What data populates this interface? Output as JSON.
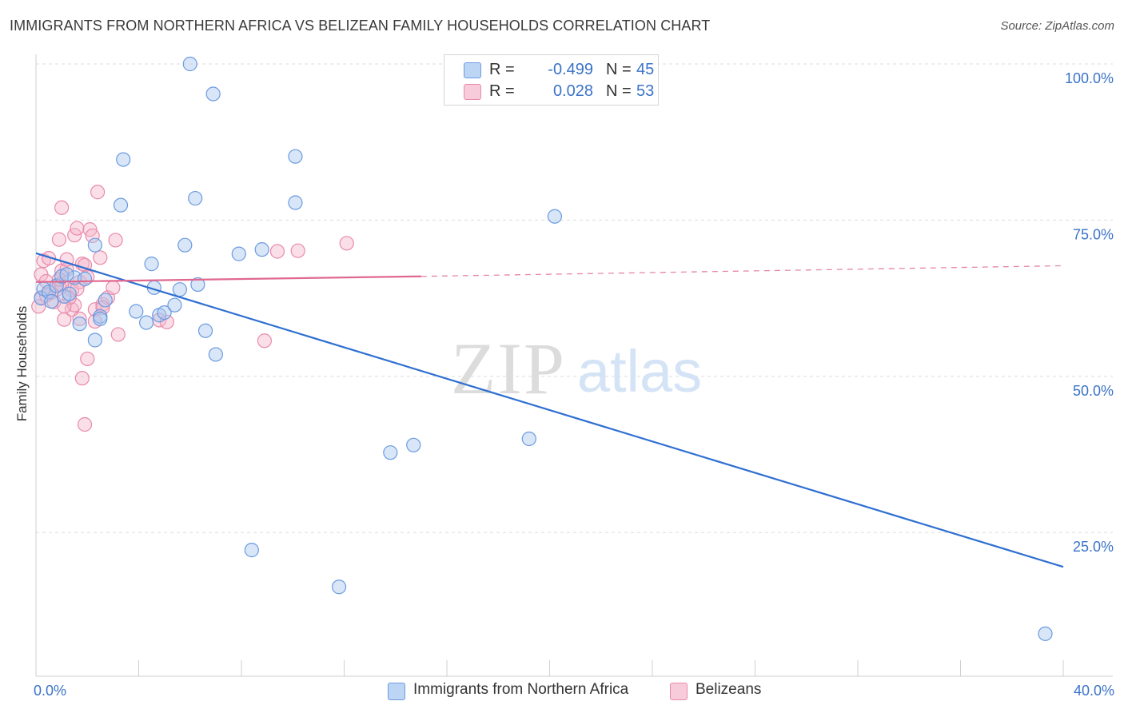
{
  "header": {
    "title": "IMMIGRANTS FROM NORTHERN AFRICA VS BELIZEAN FAMILY HOUSEHOLDS CORRELATION CHART",
    "source": "Source: ZipAtlas.com"
  },
  "legend": {
    "rows": [
      {
        "r_label": "R =",
        "r_value": "-0.499",
        "n_label": "N =",
        "n_value": "45"
      },
      {
        "r_label": "R =",
        "r_value": "0.028",
        "n_label": "N =",
        "n_value": "53"
      }
    ]
  },
  "watermark": {
    "zip": "ZIP",
    "atlas": "atlas"
  },
  "colors": {
    "blue_fill": "#a9c8f0",
    "blue_stroke": "#6b9be0",
    "blue_line": "#2e6fd1",
    "pink_fill": "#f5b8cc",
    "pink_stroke": "#e98aab",
    "pink_line": "#e0688f",
    "grid": "#dddddd",
    "axis_text": "#3a73c9"
  },
  "chart_data": {
    "type": "scatter",
    "title": "IMMIGRANTS FROM NORTHERN AFRICA VS BELIZEAN FAMILY HOUSEHOLDS CORRELATION CHART",
    "xlabel": "",
    "ylabel": "Family Households",
    "xlim": [
      0,
      40
    ],
    "ylim": [
      2,
      100
    ],
    "x_tick_labels": [
      "0.0%",
      "40.0%"
    ],
    "y_ticks": [
      25,
      50,
      75,
      100
    ],
    "y_tick_labels": [
      "25.0%",
      "50.0%",
      "75.0%",
      "100.0%"
    ],
    "grid": true,
    "series": [
      {
        "name": "Immigrants from Northern Africa",
        "color": "blue",
        "points": [
          [
            0.2,
            62.5
          ],
          [
            0.3,
            64.0
          ],
          [
            0.5,
            63.5
          ],
          [
            0.8,
            64.5
          ],
          [
            1.0,
            66.0
          ],
          [
            1.1,
            62.8
          ],
          [
            1.3,
            63.2
          ],
          [
            1.5,
            65.8
          ],
          [
            1.7,
            58.4
          ],
          [
            1.9,
            65.6
          ],
          [
            2.3,
            55.8
          ],
          [
            2.5,
            59.6
          ],
          [
            2.5,
            59.2
          ],
          [
            2.7,
            62.2
          ],
          [
            3.3,
            77.4
          ],
          [
            3.4,
            84.7
          ],
          [
            3.9,
            60.4
          ],
          [
            4.3,
            58.6
          ],
          [
            4.5,
            68.0
          ],
          [
            4.6,
            64.2
          ],
          [
            4.8,
            59.8
          ],
          [
            5.0,
            60.2
          ],
          [
            5.4,
            61.4
          ],
          [
            5.6,
            63.9
          ],
          [
            5.8,
            71.0
          ],
          [
            6.2,
            78.5
          ],
          [
            6.3,
            64.7
          ],
          [
            6.6,
            57.3
          ],
          [
            7.0,
            53.5
          ],
          [
            7.9,
            69.6
          ],
          [
            8.8,
            70.3
          ],
          [
            10.1,
            77.8
          ],
          [
            10.1,
            85.2
          ],
          [
            13.8,
            37.8
          ],
          [
            14.7,
            39.0
          ],
          [
            19.2,
            40.0
          ],
          [
            6.0,
            100.0
          ],
          [
            6.9,
            95.2
          ],
          [
            20.2,
            75.6
          ],
          [
            8.4,
            22.2
          ],
          [
            11.8,
            16.3
          ],
          [
            39.3,
            8.8
          ],
          [
            2.3,
            71.0
          ],
          [
            1.2,
            66.3
          ],
          [
            0.6,
            62.0
          ]
        ],
        "trend": {
          "x0": 0,
          "y0": 69.7,
          "x1": 40,
          "y1": 19.5
        }
      },
      {
        "name": "Belizeans",
        "color": "pink",
        "points": [
          [
            0.1,
            61.2
          ],
          [
            0.2,
            62.6
          ],
          [
            0.2,
            66.3
          ],
          [
            0.3,
            68.5
          ],
          [
            0.4,
            65.2
          ],
          [
            0.5,
            68.9
          ],
          [
            0.6,
            63.4
          ],
          [
            0.7,
            61.9
          ],
          [
            0.8,
            63.9
          ],
          [
            0.9,
            71.9
          ],
          [
            0.9,
            64.7
          ],
          [
            1.0,
            66.9
          ],
          [
            1.0,
            77.0
          ],
          [
            1.1,
            59.1
          ],
          [
            1.2,
            67.1
          ],
          [
            1.2,
            68.7
          ],
          [
            1.4,
            60.7
          ],
          [
            1.4,
            63.8
          ],
          [
            1.5,
            61.4
          ],
          [
            1.5,
            72.6
          ],
          [
            1.6,
            73.7
          ],
          [
            1.7,
            65.1
          ],
          [
            1.8,
            68.0
          ],
          [
            1.9,
            67.8
          ],
          [
            2.0,
            65.9
          ],
          [
            2.1,
            73.5
          ],
          [
            2.2,
            72.5
          ],
          [
            2.3,
            60.7
          ],
          [
            2.3,
            58.8
          ],
          [
            2.5,
            69.0
          ],
          [
            2.6,
            61.5
          ],
          [
            2.8,
            62.6
          ],
          [
            3.0,
            64.2
          ],
          [
            3.1,
            71.8
          ],
          [
            3.2,
            56.7
          ],
          [
            1.8,
            49.7
          ],
          [
            1.9,
            42.3
          ],
          [
            1.7,
            59.2
          ],
          [
            2.4,
            79.5
          ],
          [
            1.0,
            64.6
          ],
          [
            4.8,
            59.0
          ],
          [
            5.1,
            58.7
          ],
          [
            9.4,
            70.0
          ],
          [
            10.2,
            70.1
          ],
          [
            12.1,
            71.3
          ],
          [
            8.9,
            55.7
          ],
          [
            2.0,
            52.8
          ],
          [
            0.9,
            65.5
          ],
          [
            1.3,
            62.6
          ],
          [
            0.4,
            63.0
          ],
          [
            1.1,
            61.2
          ],
          [
            2.6,
            61.0
          ],
          [
            1.6,
            64.0
          ]
        ],
        "trend": {
          "x0": 0,
          "y0": 65.1,
          "x1": 15.0,
          "y1": 66.0
        },
        "trend_extension": {
          "x0": 15.0,
          "y0": 66.0,
          "x1": 40,
          "y1": 67.7
        }
      }
    ]
  }
}
